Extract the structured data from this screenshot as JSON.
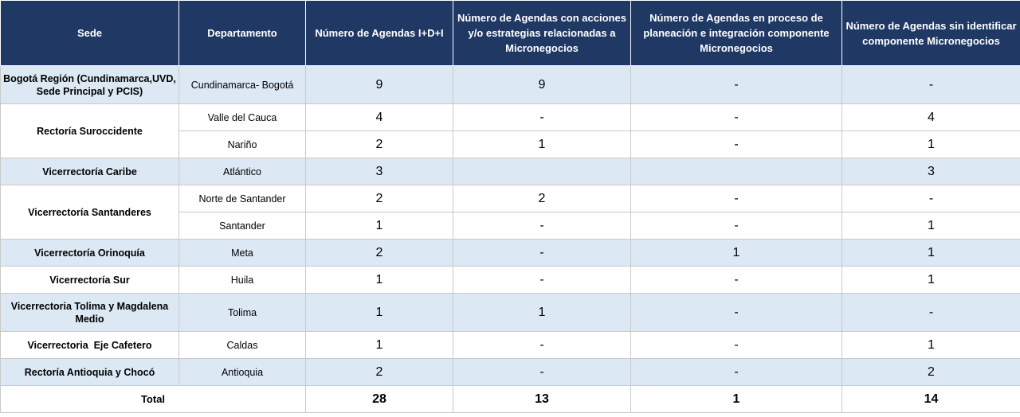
{
  "headers": {
    "sede": "Sede",
    "departamento": "Departamento",
    "agendas": "Número de Agendas I+D+I",
    "acciones": "Número de Agendas con acciones y/o estrategias relacionadas a Micronegocios",
    "proceso": "Número de Agendas en proceso de planeación e integración  componente Micronegocios",
    "sin_identificar": "Número de Agendas sin identificar componente Micronegocios"
  },
  "rows": {
    "bogota": {
      "sede": "Bogotá Región (Cundinamarca,UVD, Sede Principal y PCIS)",
      "dep": "Cundinamarca- Bogotá",
      "agendas": "9",
      "acciones": "9",
      "proceso": "-",
      "sin": "-"
    },
    "valle": {
      "sede": "Rectoría Suroccidente",
      "dep": "Valle del Cauca",
      "agendas": "4",
      "acciones": "-",
      "proceso": "-",
      "sin": "4"
    },
    "narino": {
      "dep": "Nariño",
      "agendas": "2",
      "acciones": "1",
      "proceso": "-",
      "sin": "1"
    },
    "caribe": {
      "sede": "Vicerrectoría Caribe",
      "dep": "Atlántico",
      "agendas": "3",
      "acciones": "",
      "proceso": "",
      "sin": "3"
    },
    "norte": {
      "sede": "Vicerrectoría Santanderes",
      "dep": "Norte de Santander",
      "agendas": "2",
      "acciones": "2",
      "proceso": "-",
      "sin": "-"
    },
    "santander": {
      "dep": "Santander",
      "agendas": "1",
      "acciones": "-",
      "proceso": "-",
      "sin": "1"
    },
    "orinoquia": {
      "sede": "Vicerrectoría Orinoquía",
      "dep": "Meta",
      "agendas": "2",
      "acciones": "-",
      "proceso": "1",
      "sin": "1"
    },
    "sur": {
      "sede": "Vicerrectoría Sur",
      "dep": "Huila",
      "agendas": "1",
      "acciones": "-",
      "proceso": "-",
      "sin": "1"
    },
    "tolima": {
      "sede": "Vicerrectoria Tolima y Magdalena Medio",
      "dep": "Tolima",
      "agendas": "1",
      "acciones": "1",
      "proceso": "-",
      "sin": "-"
    },
    "eje": {
      "sede": "Vicerrectoria  Eje Cafetero",
      "dep": "Caldas",
      "agendas": "1",
      "acciones": "-",
      "proceso": "-",
      "sin": "1"
    },
    "antioquia": {
      "sede": "Rectoría Antioquia y Chocó",
      "dep": "Antioquia",
      "agendas": "2",
      "acciones": "-",
      "proceso": "-",
      "sin": "2"
    }
  },
  "total": {
    "label": "Total",
    "agendas": "28",
    "acciones": "13",
    "proceso": "1",
    "sin": "14"
  }
}
